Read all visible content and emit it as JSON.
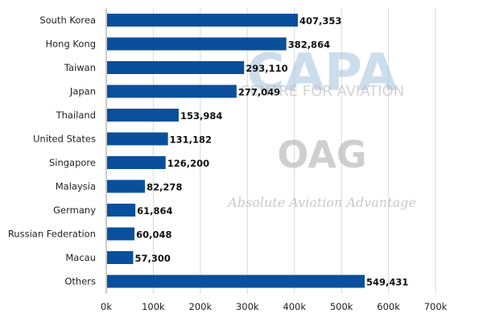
{
  "watermarks": {
    "capa_logo": "CAPA",
    "capa_tagline": "CENTRE FOR AVIATION",
    "oag_logo": "OAG",
    "oag_tagline": "Absolute Aviation Advantage"
  },
  "colors": {
    "bar": "#0a4f9c",
    "grid": "#d9d9d9",
    "axis": "#999999"
  },
  "chart_data": {
    "type": "bar",
    "orientation": "horizontal",
    "categories": [
      "South Korea",
      "Hong Kong",
      "Taiwan",
      "Japan",
      "Thailand",
      "United States",
      "Singapore",
      "Malaysia",
      "Germany",
      "Russian Federation",
      "Macau",
      "Others"
    ],
    "values": [
      407353,
      382864,
      293110,
      277049,
      153984,
      131182,
      126200,
      82278,
      61864,
      60048,
      57300,
      549431
    ],
    "value_labels": [
      "407,353",
      "382,864",
      "293,110",
      "277,049",
      "153,984",
      "131,182",
      "126,200",
      "82,278",
      "61,864",
      "60,048",
      "57,300",
      "549,431"
    ],
    "x_ticks": [
      0,
      100000,
      200000,
      300000,
      400000,
      500000,
      600000,
      700000
    ],
    "x_tick_labels": [
      "0k",
      "100k",
      "200k",
      "300k",
      "400k",
      "500k",
      "600k",
      "700k"
    ],
    "xlim": [
      0,
      700000
    ],
    "grid": true,
    "legend": false,
    "title": "",
    "xlabel": "",
    "ylabel": ""
  }
}
